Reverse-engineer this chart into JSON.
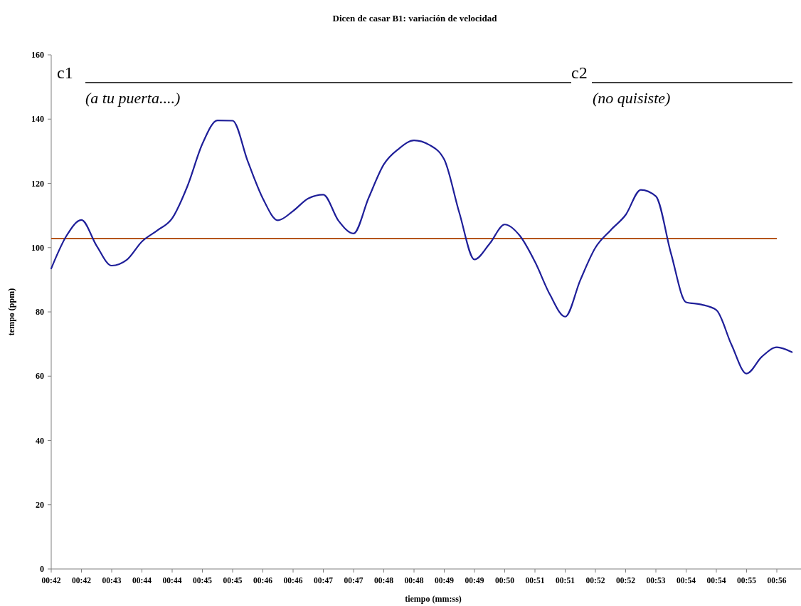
{
  "chart_data": {
    "type": "line",
    "title": "Dicen de casar B1: variación de velocidad",
    "xlabel": "tiempo (mm:ss)",
    "ylabel": "tempo (ppm)",
    "categories": [
      "00:42",
      null,
      "00:42",
      null,
      "00:43",
      null,
      "00:44",
      null,
      "00:44",
      null,
      "00:45",
      null,
      "00:45",
      null,
      "00:46",
      null,
      "00:46",
      null,
      "00:47",
      null,
      "00:47",
      null,
      "00:48",
      null,
      "00:48",
      null,
      "00:49",
      null,
      "00:49",
      null,
      "00:50",
      null,
      "00:51",
      null,
      "00:51",
      null,
      "00:52",
      null,
      "00:52",
      null,
      "00:53",
      null,
      "00:54",
      null,
      "00:54",
      null,
      "00:55",
      null,
      "00:56",
      null
    ],
    "series": [
      {
        "color": "#1f1f99",
        "values": [
          93.5,
          103.6,
          108.6,
          100.6,
          94.4,
          96.2,
          101.9,
          105.3,
          109.1,
          119,
          132.3,
          139.6,
          139.5,
          126.9,
          115.3,
          108.5,
          111.4,
          115.3,
          116.5,
          108.4,
          104.4,
          115.5,
          125.9,
          130.8,
          133.4,
          132,
          127.4,
          110.8,
          96.3,
          101.2,
          107.2,
          103.7,
          95.6,
          85.3,
          78.5,
          89.9,
          100,
          105.4,
          110.2,
          118,
          116,
          98.2,
          83,
          82.3,
          80.6,
          69.8,
          60.8,
          66,
          69,
          67.5
        ]
      }
    ],
    "ylim": [
      0,
      160
    ],
    "yticks": [
      0,
      20,
      40,
      60,
      80,
      100,
      120,
      140,
      160
    ],
    "grid": false,
    "marker": "none",
    "line_style": "solid",
    "ref_lines": [
      {
        "axis": "y",
        "value": 102.8,
        "color": "#b5561c"
      }
    ],
    "annotations": [
      "c1",
      "(a tu puerta....)",
      "c2",
      "(no quisiste)"
    ]
  }
}
